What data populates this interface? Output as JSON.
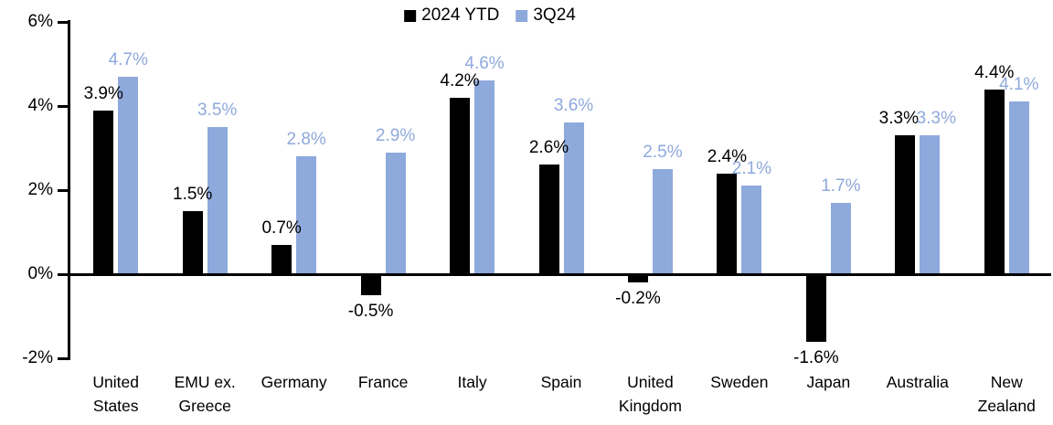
{
  "chart_data": {
    "type": "bar",
    "title": "",
    "categories": [
      "United States",
      "EMU ex. Greece",
      "Germany",
      "France",
      "Italy",
      "Spain",
      "United Kingdom",
      "Sweden",
      "Japan",
      "Australia",
      "New Zealand"
    ],
    "categories_display": [
      [
        "United",
        "States"
      ],
      [
        "EMU ex.",
        "Greece"
      ],
      [
        "Germany"
      ],
      [
        "France"
      ],
      [
        "Italy"
      ],
      [
        "Spain"
      ],
      [
        "United",
        "Kingdom"
      ],
      [
        "Sweden"
      ],
      [
        "Japan"
      ],
      [
        "Australia"
      ],
      [
        "New",
        "Zealand"
      ]
    ],
    "series": [
      {
        "name": "2024 YTD",
        "color": "#000000",
        "label_color": "#000000",
        "values": [
          3.9,
          1.5,
          0.7,
          -0.5,
          4.2,
          2.6,
          -0.2,
          2.4,
          -1.6,
          3.3,
          4.4
        ],
        "labels": [
          "3.9%",
          "1.5%",
          "0.7%",
          "-0.5%",
          "4.2%",
          "2.6%",
          "-0.2%",
          "2.4%",
          "-1.6%",
          "3.3%",
          "4.4%"
        ]
      },
      {
        "name": "3Q24",
        "color": "#8EA9DB",
        "label_color": "#8EA9DB",
        "values": [
          4.7,
          3.5,
          2.8,
          2.9,
          4.6,
          3.6,
          2.5,
          2.1,
          1.7,
          3.3,
          4.1
        ],
        "labels": [
          "4.7%",
          "3.5%",
          "2.8%",
          "2.9%",
          "4.6%",
          "3.6%",
          "2.5%",
          "2.1%",
          "1.7%",
          "3.3%",
          "4.1%"
        ]
      }
    ],
    "ylim": [
      -2,
      6
    ],
    "yticks": [
      {
        "value": 6,
        "label": "6%"
      },
      {
        "value": 4,
        "label": "4%"
      },
      {
        "value": 2,
        "label": "2%"
      },
      {
        "value": 0,
        "label": "0%"
      },
      {
        "value": -2,
        "label": "-2%"
      }
    ],
    "legend": {
      "position": "top-center",
      "entries": [
        "2024 YTD",
        "3Q24"
      ]
    },
    "grid": false,
    "axis_color": "#000000",
    "background": "#FFFFFF",
    "xlabel": "",
    "ylabel": ""
  }
}
